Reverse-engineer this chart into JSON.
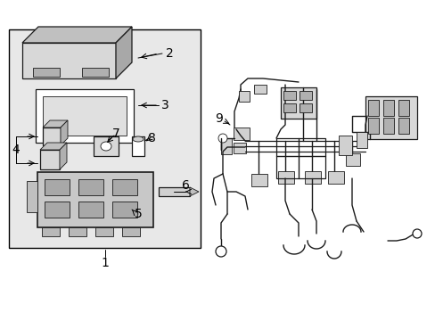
{
  "background_color": "#ffffff",
  "line_color": "#1a1a1a",
  "fill_gray": "#d8d8d8",
  "fill_light": "#eeeeee",
  "fill_mid": "#c0c0c0",
  "figsize": [
    4.89,
    3.6
  ],
  "dpi": 100,
  "box_fill": "#e8e8e8",
  "label_fontsize": 9
}
